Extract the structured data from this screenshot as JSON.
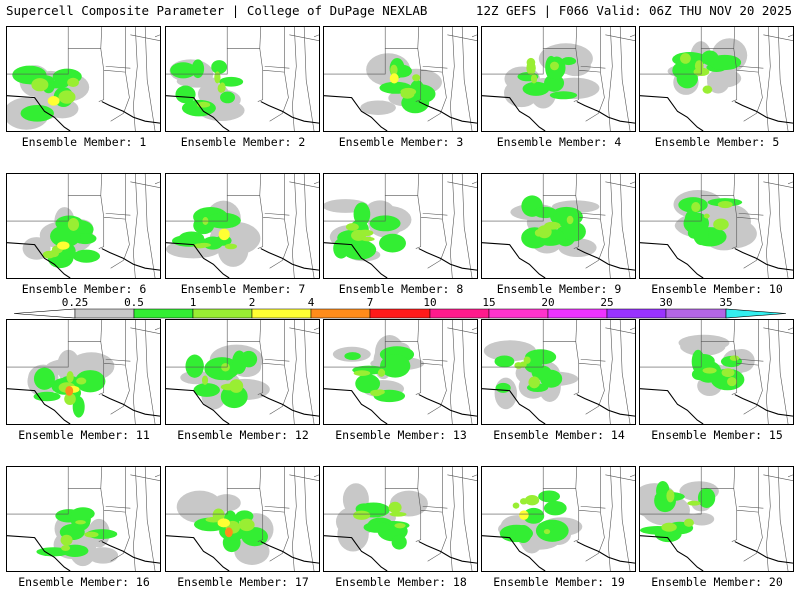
{
  "header": {
    "left": "Supercell Composite Parameter | College of DuPage NEXLAB",
    "right": "12Z GEFS | F066 Valid: 06Z THU NOV 20 2025"
  },
  "members": [
    {
      "label": "Ensemble Member: 1"
    },
    {
      "label": "Ensemble Member: 2"
    },
    {
      "label": "Ensemble Member: 3"
    },
    {
      "label": "Ensemble Member: 4"
    },
    {
      "label": "Ensemble Member: 5"
    },
    {
      "label": "Ensemble Member: 6"
    },
    {
      "label": "Ensemble Member: 7"
    },
    {
      "label": "Ensemble Member: 8"
    },
    {
      "label": "Ensemble Member: 9"
    },
    {
      "label": "Ensemble Member: 10"
    },
    {
      "label": "Ensemble Member: 11"
    },
    {
      "label": "Ensemble Member: 12"
    },
    {
      "label": "Ensemble Member: 13"
    },
    {
      "label": "Ensemble Member: 14"
    },
    {
      "label": "Ensemble Member: 15"
    },
    {
      "label": "Ensemble Member: 16"
    },
    {
      "label": "Ensemble Member: 17"
    },
    {
      "label": "Ensemble Member: 18"
    },
    {
      "label": "Ensemble Member: 19"
    },
    {
      "label": "Ensemble Member: 20"
    }
  ],
  "colorbar": {
    "labels": [
      "0.25",
      "0.5",
      "1",
      "2",
      "4",
      "7",
      "10",
      "15",
      "20",
      "25",
      "30",
      "35"
    ],
    "colors": [
      "#c8c8c8",
      "#33ee33",
      "#99ee33",
      "#ffff33",
      "#ff8c1a",
      "#ff1a1a",
      "#ff1a8c",
      "#ff33cc",
      "#ee33ff",
      "#9933ff",
      "#b366e6",
      "#33eeee"
    ]
  }
}
